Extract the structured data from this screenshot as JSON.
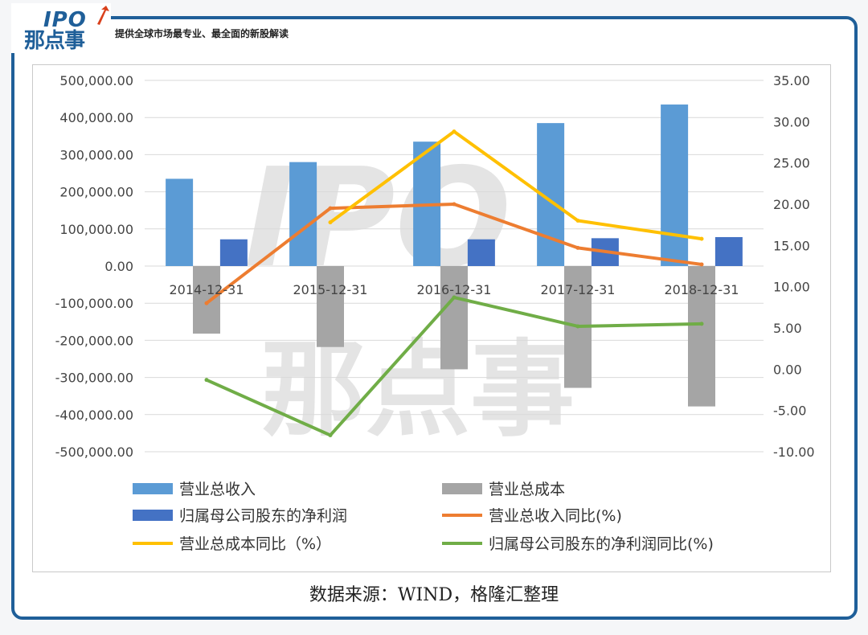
{
  "header": {
    "logo_ipo": "IPO",
    "logo_name": "那点事",
    "tagline": "提供全球市场最专业、最全面的新股解读"
  },
  "footer": {
    "source": "数据来源：WIND，格隆汇整理"
  },
  "watermark": {
    "line1": "IPO",
    "line2": "那点事"
  },
  "colors": {
    "revenue": "#5b9bd5",
    "cost": "#a5a5a5",
    "net_profit": "#4472c4",
    "revenue_yoy": "#ed7d31",
    "cost_yoy": "#ffc000",
    "net_profit_yoy": "#70ad47",
    "frame": "#1f5f99"
  },
  "chart_data": {
    "type": "bar",
    "categories": [
      "2014-12-31",
      "2015-12-31",
      "2016-12-31",
      "2017-12-31",
      "2018-12-31"
    ],
    "y_left": {
      "range": [
        -500000,
        500000
      ],
      "step": 100000,
      "ticks": [
        "500,000.00",
        "400,000.00",
        "300,000.00",
        "200,000.00",
        "100,000.00",
        "0.00",
        "-100,000.00",
        "-200,000.00",
        "-300,000.00",
        "-400,000.00",
        "-500,000.00"
      ]
    },
    "y_right": {
      "range": [
        -10,
        35
      ],
      "step": 5,
      "ticks": [
        "35.00",
        "30.00",
        "25.00",
        "20.00",
        "15.00",
        "10.00",
        "5.00",
        "0.00",
        "-5.00",
        "-10.00"
      ]
    },
    "grid": true,
    "legend_position": "bottom",
    "series": [
      {
        "name": "营业总收入",
        "kind": "bar",
        "axis": "left",
        "color": "#5b9bd5",
        "values": [
          235000,
          280000,
          335000,
          385000,
          435000
        ]
      },
      {
        "name": "营业总成本",
        "kind": "bar",
        "axis": "left",
        "color": "#a5a5a5",
        "values": [
          -182000,
          -218000,
          -278000,
          -328000,
          -378000
        ]
      },
      {
        "name": "归属母公司股东的净利润",
        "kind": "bar",
        "axis": "left",
        "color": "#4472c4",
        "values": [
          72000,
          null,
          72000,
          75000,
          78000
        ]
      },
      {
        "name": "营业总收入同比(%)",
        "kind": "line",
        "axis": "right",
        "color": "#ed7d31",
        "values": [
          8.0,
          19.5,
          20.0,
          14.7,
          12.7
        ]
      },
      {
        "name": "营业总成本同比（%）",
        "kind": "line",
        "axis": "right",
        "color": "#ffc000",
        "values": [
          null,
          17.8,
          28.8,
          18.0,
          15.8
        ]
      },
      {
        "name": "归属母公司股东的净利润同比(%)",
        "kind": "line",
        "axis": "right",
        "color": "#70ad47",
        "values": [
          -1.3,
          -8.0,
          8.7,
          5.2,
          5.5
        ]
      }
    ]
  }
}
